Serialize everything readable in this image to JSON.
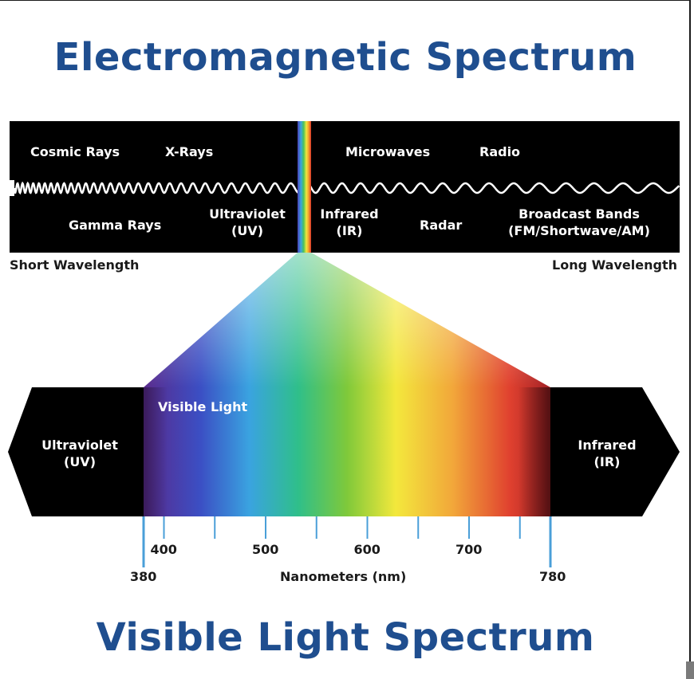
{
  "titles": {
    "top": "Electromagnetic Spectrum",
    "bottom": "Visible Light Spectrum"
  },
  "em_bands": {
    "cosmic_rays": "Cosmic Rays",
    "x_rays": "X-Rays",
    "microwaves": "Microwaves",
    "radio": "Radio",
    "gamma_rays": "Gamma Rays",
    "ultraviolet_line1": "Ultraviolet",
    "ultraviolet_line2": "(UV)",
    "infrared_line1": "Infrared",
    "infrared_line2": "(IR)",
    "radar": "Radar",
    "broadcast_line1": "Broadcast Bands",
    "broadcast_line2": "(FM/Shortwave/AM)"
  },
  "wavelength_ends": {
    "short": "Short Wavelength",
    "long": "Long Wavelength"
  },
  "visible": {
    "label": "Visible Light",
    "uv_line1": "Ultraviolet",
    "uv_line2": "(UV)",
    "ir_line1": "Infrared",
    "ir_line2": "(IR)"
  },
  "axis": {
    "label": "Nanometers (nm)",
    "start": 380,
    "end": 780,
    "major_ticks": [
      400,
      500,
      600,
      700
    ],
    "minor_ticks": [
      450,
      550,
      650,
      750
    ],
    "start_label": "380",
    "end_label": "780"
  },
  "colors": {
    "title_blue": "#1f4e8f",
    "band_black": "#000000",
    "tick_blue": "#4a9fd8"
  }
}
